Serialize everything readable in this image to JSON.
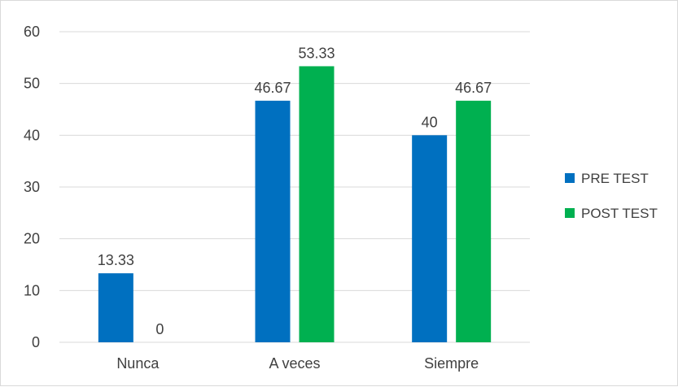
{
  "chart_data": {
    "type": "bar",
    "categories": [
      "Nunca",
      "A veces",
      "Siempre"
    ],
    "series": [
      {
        "name": "PRE TEST",
        "values": [
          13.33,
          46.67,
          40
        ],
        "color": "#0070c0"
      },
      {
        "name": "POST TEST",
        "values": [
          0,
          53.33,
          46.67
        ],
        "color": "#00b050"
      }
    ],
    "data_labels": [
      [
        "13.33",
        "46.67",
        "40"
      ],
      [
        "0",
        "53.33",
        "46.67"
      ]
    ],
    "ylim": [
      0,
      60
    ],
    "yticks": [
      0,
      10,
      20,
      30,
      40,
      50,
      60
    ],
    "grid": true,
    "legend_position": "right",
    "gridline_color": "#d9d9d9"
  }
}
